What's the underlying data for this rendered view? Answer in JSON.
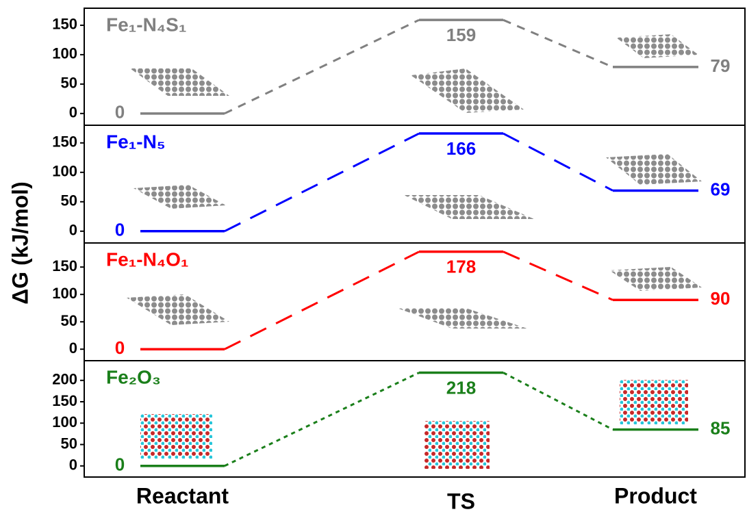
{
  "ylabel": "ΔG (kJ/mol)",
  "chart_data": [
    {
      "type": "energy",
      "title": "Fe₁-N₄S₁",
      "values": [
        0,
        159,
        79
      ],
      "color": "#808080",
      "line_style": "dashed",
      "ylim": [
        -20,
        179
      ],
      "yticks": [
        0,
        50,
        100,
        150
      ]
    },
    {
      "type": "energy",
      "title": "Fe₁-N₅",
      "values": [
        0,
        166,
        69
      ],
      "color": "#0000ff",
      "line_style": "long-dashed",
      "ylim": [
        -20,
        180
      ],
      "yticks": [
        0,
        50,
        100,
        150
      ]
    },
    {
      "type": "energy",
      "title": "Fe₁-N₄O₁",
      "values": [
        0,
        178,
        90
      ],
      "color": "#ff0000",
      "line_style": "long-dashed",
      "ylim": [
        -21,
        194
      ],
      "yticks": [
        0,
        50,
        100,
        150
      ]
    },
    {
      "type": "energy",
      "title": "Fe₂O₃",
      "values": [
        0,
        218,
        85
      ],
      "color": "#1a7f1a",
      "line_style": "dotted",
      "ylim": [
        -26,
        246
      ],
      "yticks": [
        0,
        50,
        100,
        150,
        200
      ],
      "categories": [
        "Reactant",
        "TS",
        "Product"
      ]
    }
  ]
}
